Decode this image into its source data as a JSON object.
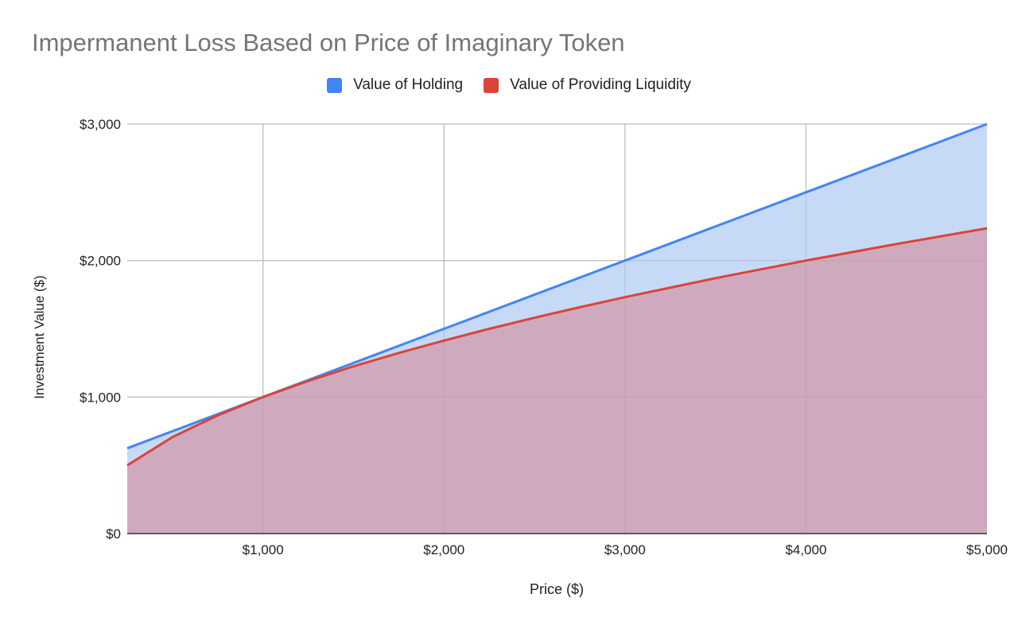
{
  "chart_data": {
    "type": "area",
    "title": "Impermanent Loss Based on Price of Imaginary Token",
    "xlabel": "Price ($)",
    "ylabel": "Investment Value ($)",
    "x": [
      250,
      500,
      750,
      1000,
      1250,
      1500,
      1750,
      2000,
      2250,
      2500,
      2750,
      3000,
      3500,
      4000,
      4500,
      5000
    ],
    "series": [
      {
        "name": "Value of Holding",
        "color": "#4285f4",
        "fill": "#c6d9f7",
        "values": [
          625,
          750,
          875,
          1000,
          1125,
          1250,
          1375,
          1500,
          1625,
          1750,
          1875,
          2000,
          2250,
          2500,
          2750,
          3000
        ]
      },
      {
        "name": "Value of Providing Liquidity",
        "color": "#db4437",
        "fill": "#cfaabf",
        "values": [
          500,
          707,
          866,
          1000,
          1118,
          1225,
          1323,
          1414,
          1500,
          1581,
          1658,
          1732,
          1871,
          2000,
          2121,
          2236
        ]
      }
    ],
    "xlim": [
      250,
      5000
    ],
    "ylim": [
      0,
      3000
    ],
    "xticks": [
      {
        "v": 1000,
        "label": "$1,000"
      },
      {
        "v": 2000,
        "label": "$2,000"
      },
      {
        "v": 3000,
        "label": "$3,000"
      },
      {
        "v": 4000,
        "label": "$4,000"
      },
      {
        "v": 5000,
        "label": "$5,000"
      }
    ],
    "yticks": [
      {
        "v": 0,
        "label": "$0"
      },
      {
        "v": 1000,
        "label": "$1,000"
      },
      {
        "v": 2000,
        "label": "$2,000"
      },
      {
        "v": 3000,
        "label": "$3,000"
      }
    ],
    "grid": true,
    "legend": "top"
  }
}
